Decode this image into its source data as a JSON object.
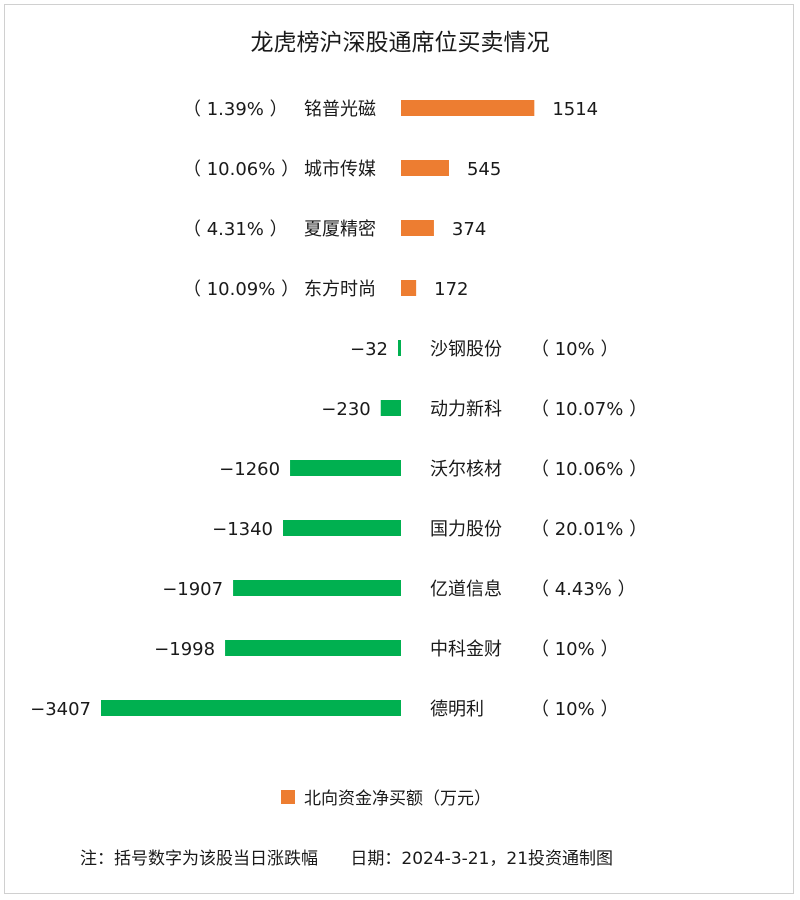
{
  "chart_data": {
    "type": "bar",
    "orientation": "horizontal",
    "title": "龙虎榜沪深股通席位买卖情况",
    "categories": [
      "铭普光磁",
      "城市传媒",
      "夏厦精密",
      "东方时尚",
      "沙钢股份",
      "动力新科",
      "沃尔核材",
      "国力股份",
      "亿道信息",
      "中科金财",
      "德明利"
    ],
    "values": [
      1514,
      545,
      374,
      172,
      -32,
      -230,
      -1260,
      -1340,
      -1907,
      -1998,
      -3407
    ],
    "value_labels": [
      "1514",
      "545",
      "374",
      "172",
      "-32",
      "-230",
      "-1260",
      "-1340",
      "-1907",
      "-1998",
      "-3407"
    ],
    "change_labels": [
      "（ 1.39% ）",
      "（ 10.06% ）",
      "（ 4.31% ）",
      "（ 10.09% ）",
      "（ 10% ）",
      "（ 10.07% ）",
      "（ 10.06% ）",
      "（ 20.01% ）",
      "（ 4.43% ）",
      "（ 10% ）",
      "（ 10% ）"
    ],
    "series": [
      {
        "name": "北向资金净买额（万元）"
      }
    ],
    "legend_position": "bottom",
    "grid": false,
    "colors": {
      "positive": "#ed7d31",
      "negative": "#00b050"
    },
    "footnote": "注：括号数字为该股当日涨跌幅      日期：2024-3-21，21投资通制图"
  }
}
